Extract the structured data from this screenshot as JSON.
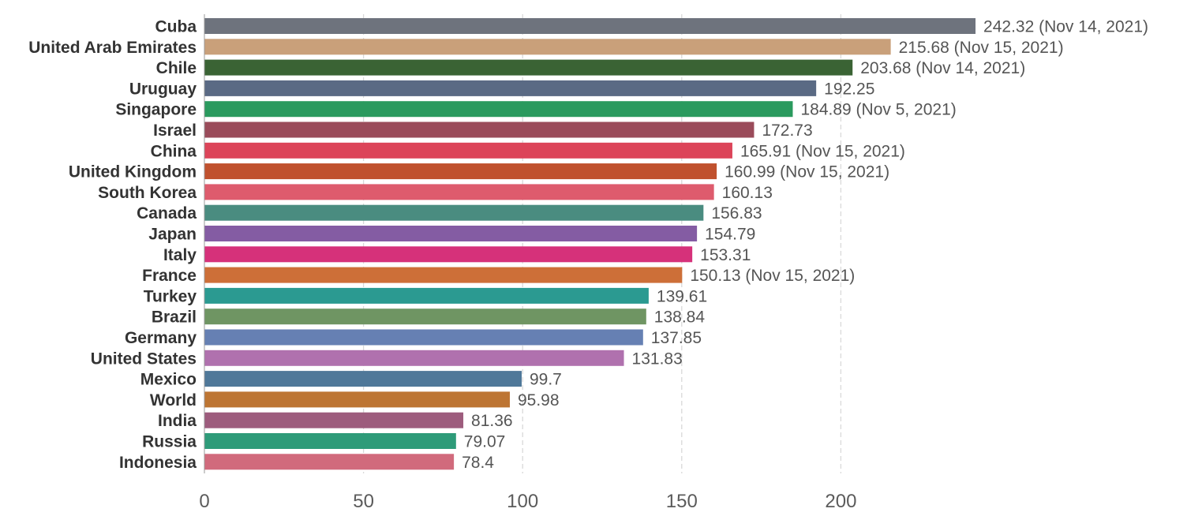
{
  "chart_data": {
    "type": "bar",
    "orientation": "horizontal",
    "title": "",
    "xlabel": "",
    "ylabel": "",
    "xlim": [
      0,
      242.32
    ],
    "x_ticks": [
      "0",
      "50",
      "100",
      "150",
      "200"
    ],
    "grid": "vertical dashed",
    "categories": [
      "Cuba",
      "United Arab Emirates",
      "Chile",
      "Uruguay",
      "Singapore",
      "Israel",
      "China",
      "United Kingdom",
      "South Korea",
      "Canada",
      "Japan",
      "Italy",
      "France",
      "Turkey",
      "Brazil",
      "Germany",
      "United States",
      "Mexico",
      "World",
      "India",
      "Russia",
      "Indonesia"
    ],
    "values": [
      242.32,
      215.68,
      203.68,
      192.25,
      184.89,
      172.73,
      165.91,
      160.99,
      160.13,
      156.83,
      154.79,
      153.31,
      150.13,
      139.61,
      138.84,
      137.85,
      131.83,
      99.7,
      95.98,
      81.36,
      79.07,
      78.4
    ],
    "value_labels": [
      "242.32 (Nov 14, 2021)",
      "215.68 (Nov 15, 2021)",
      "203.68 (Nov 14, 2021)",
      "192.25",
      "184.89 (Nov 5, 2021)",
      "172.73",
      "165.91 (Nov 15, 2021)",
      "160.99 (Nov 15, 2021)",
      "160.13",
      "156.83",
      "154.79",
      "153.31",
      "150.13 (Nov 15, 2021)",
      "139.61",
      "138.84",
      "137.85",
      "131.83",
      "99.7",
      "95.98",
      "81.36",
      "79.07",
      "78.4"
    ],
    "colors": [
      "#6e737d",
      "#c9a07a",
      "#3a6334",
      "#5a6a84",
      "#2a9a5e",
      "#9a4b5a",
      "#dc4459",
      "#c0512e",
      "#de5b6d",
      "#4a8c80",
      "#845ca3",
      "#d6317a",
      "#cd6f38",
      "#2b9a91",
      "#6f9563",
      "#6680b3",
      "#b071ae",
      "#4f7899",
      "#bd7533",
      "#9d5c7d",
      "#2e9b79",
      "#d16a7c"
    ]
  }
}
